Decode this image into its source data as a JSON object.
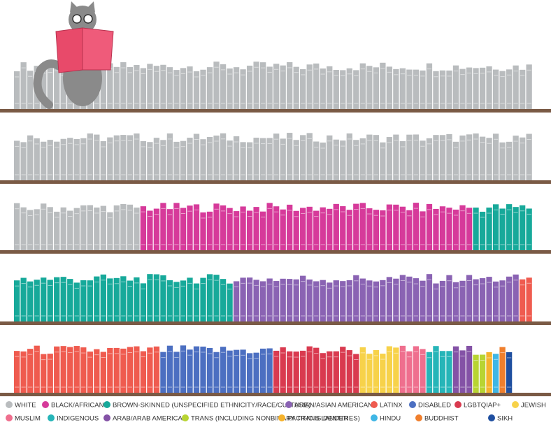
{
  "chart_data": {
    "type": "unit",
    "series": [
      {
        "name": "WHITE",
        "color": "#b9bcbe",
        "value": 175
      },
      {
        "name": "BLACK/AFRICAN",
        "color": "#d63a9a",
        "value": 50
      },
      {
        "name": "BROWN-SKINNED (UNSPECIFIED ETHNICITY/RACE/CULTURE)",
        "color": "#17a99a",
        "value": 42
      },
      {
        "name": "ASIAN/ASIAN AMERICAN",
        "color": "#8a63b3",
        "value": 43
      },
      {
        "name": "LATINX",
        "color": "#ef5b4f",
        "value": 24
      },
      {
        "name": "DISABLED",
        "color": "#4c6fc1",
        "value": 17
      },
      {
        "name": "LGBTQIAP+",
        "color": "#d93a4f",
        "value": 13
      },
      {
        "name": "JEWISH",
        "color": "#f7d24a",
        "value": 6
      },
      {
        "name": "MUSLIM",
        "color": "#ef6f8e",
        "value": 4
      },
      {
        "name": "INDIGENOUS",
        "color": "#26b5b8",
        "value": 4
      },
      {
        "name": "ARAB/ARAB AMERICAN",
        "color": "#8452a6",
        "value": 3
      },
      {
        "name": "TRANS (INCLUDING NONBINARY TRANS IDENTITIES)",
        "color": "#b8d432",
        "value": 2
      },
      {
        "name": "PACIFIC ISLANDER",
        "color": "#f5b22c",
        "value": 1
      },
      {
        "name": "HINDU",
        "color": "#3fb6e5",
        "value": 1
      },
      {
        "name": "BUDDHIST",
        "color": "#f07f2d",
        "value": 1
      },
      {
        "name": "SIKH",
        "color": "#1f4fa0",
        "value": 1
      }
    ]
  }
}
